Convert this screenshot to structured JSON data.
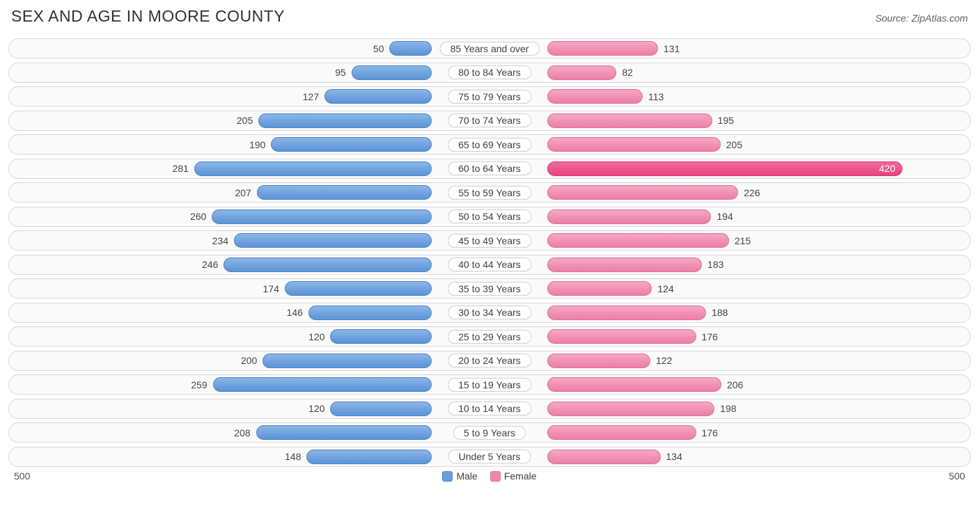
{
  "title": "SEX AND AGE IN MOORE COUNTY",
  "source": "Source: ZipAtlas.com",
  "chart": {
    "type": "population-pyramid",
    "axis_max": 500,
    "axis_left_label": "500",
    "axis_right_label": "500",
    "male_color": "#6a9fdc",
    "female_color": "#ee88ac",
    "female_highlight_color": "#e9437f",
    "track_border_color": "#d8d8d8",
    "track_bg_color": "#fafafa",
    "label_pill_bg": "#ffffff",
    "label_pill_border": "#d0d0d0",
    "value_font_size": 14,
    "category_font_size": 14,
    "rows": [
      {
        "category": "85 Years and over",
        "male": 50,
        "female": 131,
        "highlight": false
      },
      {
        "category": "80 to 84 Years",
        "male": 95,
        "female": 82,
        "highlight": false
      },
      {
        "category": "75 to 79 Years",
        "male": 127,
        "female": 113,
        "highlight": false
      },
      {
        "category": "70 to 74 Years",
        "male": 205,
        "female": 195,
        "highlight": false
      },
      {
        "category": "65 to 69 Years",
        "male": 190,
        "female": 205,
        "highlight": false
      },
      {
        "category": "60 to 64 Years",
        "male": 281,
        "female": 420,
        "highlight": true
      },
      {
        "category": "55 to 59 Years",
        "male": 207,
        "female": 226,
        "highlight": false
      },
      {
        "category": "50 to 54 Years",
        "male": 260,
        "female": 194,
        "highlight": false
      },
      {
        "category": "45 to 49 Years",
        "male": 234,
        "female": 215,
        "highlight": false
      },
      {
        "category": "40 to 44 Years",
        "male": 246,
        "female": 183,
        "highlight": false
      },
      {
        "category": "35 to 39 Years",
        "male": 174,
        "female": 124,
        "highlight": false
      },
      {
        "category": "30 to 34 Years",
        "male": 146,
        "female": 188,
        "highlight": false
      },
      {
        "category": "25 to 29 Years",
        "male": 120,
        "female": 176,
        "highlight": false
      },
      {
        "category": "20 to 24 Years",
        "male": 200,
        "female": 122,
        "highlight": false
      },
      {
        "category": "15 to 19 Years",
        "male": 259,
        "female": 206,
        "highlight": false
      },
      {
        "category": "10 to 14 Years",
        "male": 120,
        "female": 198,
        "highlight": false
      },
      {
        "category": "5 to 9 Years",
        "male": 208,
        "female": 176,
        "highlight": false
      },
      {
        "category": "Under 5 Years",
        "male": 148,
        "female": 134,
        "highlight": false
      }
    ]
  },
  "legend": {
    "male": "Male",
    "female": "Female"
  }
}
